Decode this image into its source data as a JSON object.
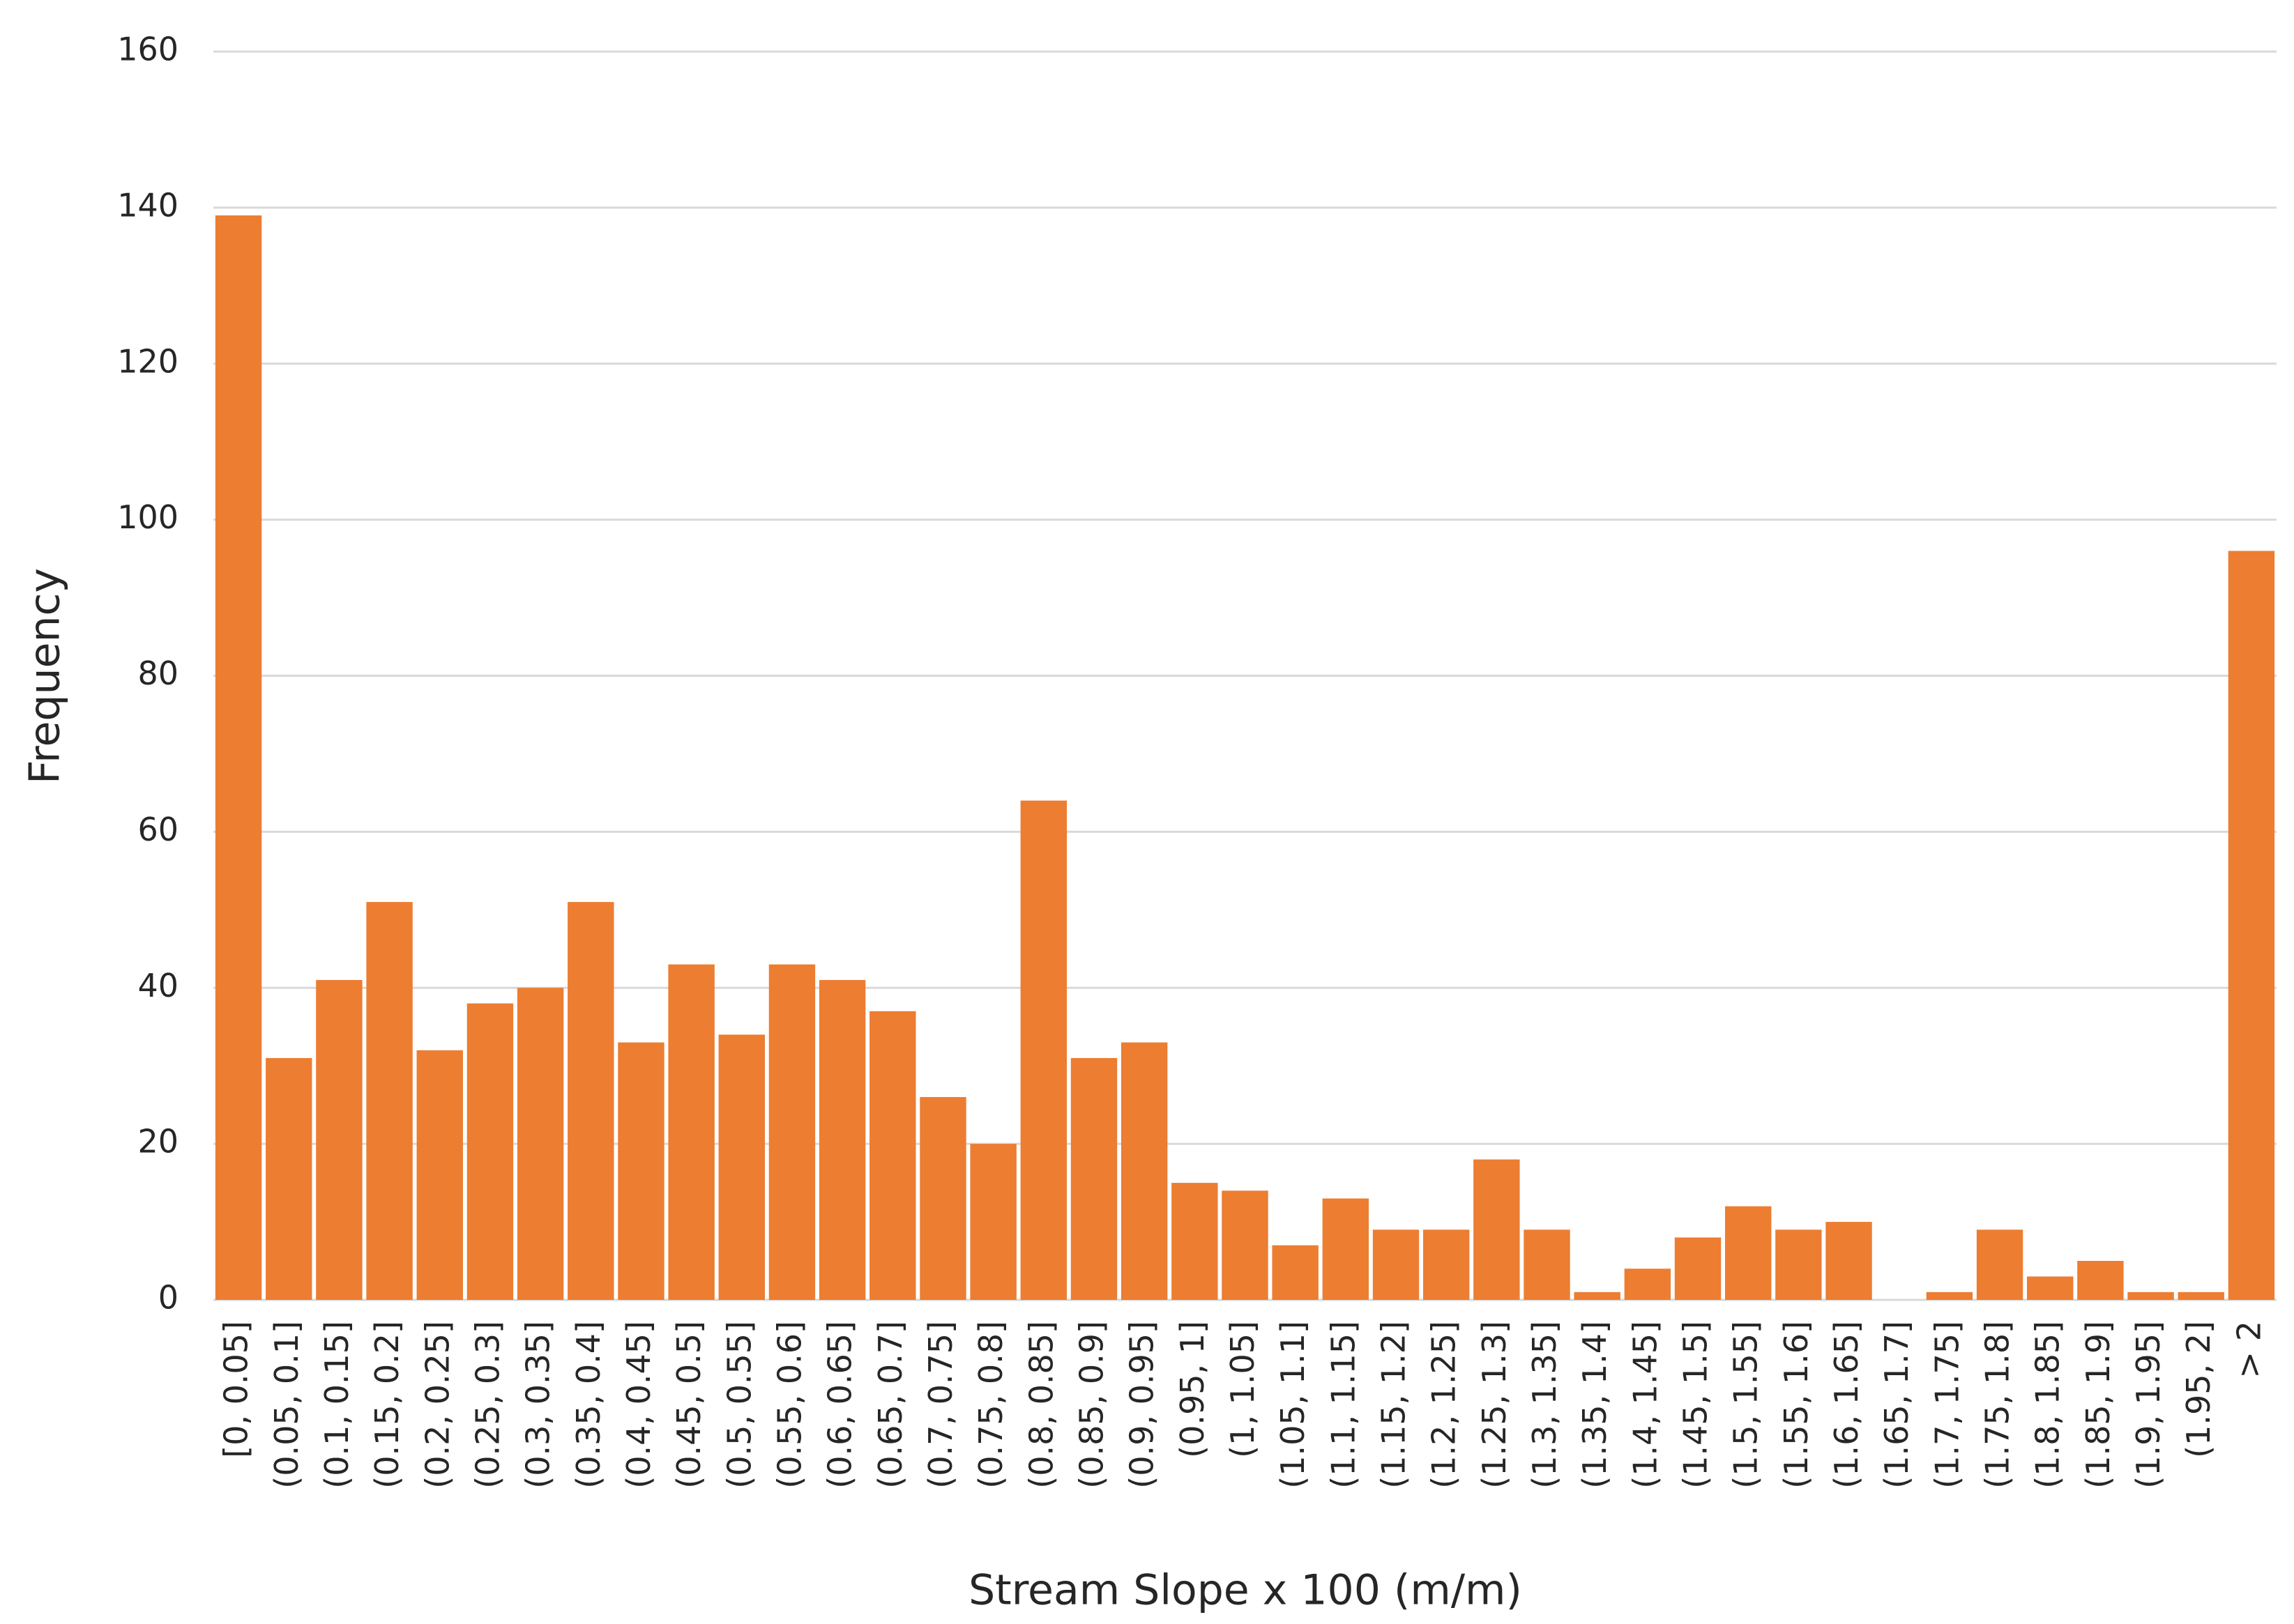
{
  "chart_data": {
    "type": "bar",
    "x_label": "Stream Slope x 100 (m/m)",
    "y_label": "Frequency",
    "categories": [
      "[0, 0.05]",
      "(0.05, 0.1]",
      "(0.1, 0.15]",
      "(0.15, 0.2]",
      "(0.2, 0.25]",
      "(0.25, 0.3]",
      "(0.3, 0.35]",
      "(0.35, 0.4]",
      "(0.4, 0.45]",
      "(0.45, 0.5]",
      "(0.5, 0.55]",
      "(0.55, 0.6]",
      "(0.6, 0.65]",
      "(0.65, 0.7]",
      "(0.7, 0.75]",
      "(0.75, 0.8]",
      "(0.8, 0.85]",
      "(0.85, 0.9]",
      "(0.9, 0.95]",
      "(0.95, 1]",
      "(1, 1.05]",
      "(1.05, 1.1]",
      "(1.1, 1.15]",
      "(1.15, 1.2]",
      "(1.2, 1.25]",
      "(1.25, 1.3]",
      "(1.3, 1.35]",
      "(1.35, 1.4]",
      "(1.4, 1.45]",
      "(1.45, 1.5]",
      "(1.5, 1.55]",
      "(1.55, 1.6]",
      "(1.6, 1.65]",
      "(1.65, 1.7]",
      "(1.7, 1.75]",
      "(1.75, 1.8]",
      "(1.8, 1.85]",
      "(1.85, 1.9]",
      "(1.9, 1.95]",
      "(1.95, 2]",
      "> 2"
    ],
    "values": [
      139,
      31,
      41,
      51,
      32,
      38,
      40,
      51,
      33,
      43,
      34,
      43,
      41,
      37,
      26,
      20,
      64,
      31,
      33,
      15,
      14,
      7,
      13,
      9,
      9,
      18,
      9,
      1,
      4,
      8,
      12,
      9,
      10,
      0,
      1,
      9,
      3,
      5,
      1,
      1,
      96
    ],
    "color": "#ed7d31",
    "ylim": [
      0,
      160
    ],
    "yticks": [
      0,
      20,
      40,
      60,
      80,
      100,
      120,
      140,
      160
    ],
    "grid": true
  }
}
